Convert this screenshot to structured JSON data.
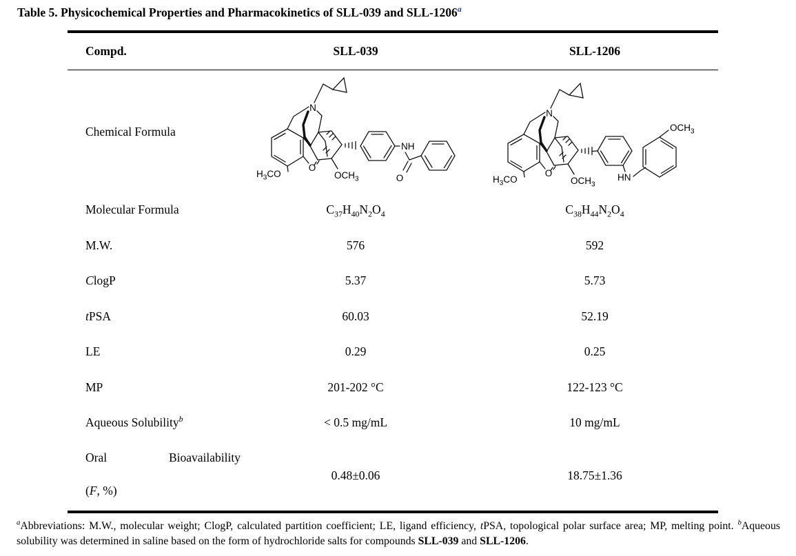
{
  "title": {
    "segments": [
      {
        "t": "Table 5. Physicochemical Properties and Pharmacokinetics of SLL-039 and SLL-1206",
        "b": true
      },
      {
        "t": "a",
        "sup": true,
        "i": true,
        "b": true,
        "c": "#2b3f96"
      }
    ]
  },
  "table": {
    "header": {
      "compound_label": "Compd.",
      "col1": "SLL-039",
      "col2": "SLL-1206"
    },
    "structure_row_label": "Chemical Formula",
    "structures": {
      "core_labels": {
        "methoxy_aryl": "H3CO",
        "ether_o": "O",
        "c6_methoxy": "OCH3",
        "nitrogen": "N"
      },
      "sll039_labels": {
        "amide_nh": "NH",
        "carbonyl_o": "O"
      },
      "sll1206_labels": {
        "amine_hn": "HN",
        "pmb_methoxy": "OCH3"
      }
    },
    "rows": [
      {
        "name": "molecular-formula",
        "label": [
          {
            "t": "Molecular Formula"
          }
        ],
        "v1": [
          {
            "t": "C"
          },
          {
            "t": "37",
            "sub": true
          },
          {
            "t": "H"
          },
          {
            "t": "40",
            "sub": true
          },
          {
            "t": "N"
          },
          {
            "t": "2",
            "sub": true
          },
          {
            "t": "O"
          },
          {
            "t": "4",
            "sub": true
          }
        ],
        "v2": [
          {
            "t": "C"
          },
          {
            "t": "38",
            "sub": true
          },
          {
            "t": "H"
          },
          {
            "t": "44",
            "sub": true
          },
          {
            "t": "N"
          },
          {
            "t": "2",
            "sub": true
          },
          {
            "t": "O"
          },
          {
            "t": "4",
            "sub": true
          }
        ]
      },
      {
        "name": "molecular-weight",
        "label": [
          {
            "t": "M.W."
          }
        ],
        "v1": [
          {
            "t": "576"
          }
        ],
        "v2": [
          {
            "t": "592"
          }
        ]
      },
      {
        "name": "clogp",
        "label": [
          {
            "t": "C",
            "i": true
          },
          {
            "t": "logP"
          }
        ],
        "v1": [
          {
            "t": "5.37"
          }
        ],
        "v2": [
          {
            "t": "5.73"
          }
        ]
      },
      {
        "name": "tpsa",
        "label": [
          {
            "t": "t",
            "i": true
          },
          {
            "t": "PSA"
          }
        ],
        "v1": [
          {
            "t": "60.03"
          }
        ],
        "v2": [
          {
            "t": "52.19"
          }
        ]
      },
      {
        "name": "ligand-efficiency",
        "label": [
          {
            "t": "LE"
          }
        ],
        "v1": [
          {
            "t": "0.29"
          }
        ],
        "v2": [
          {
            "t": "0.25"
          }
        ]
      },
      {
        "name": "melting-point",
        "label": [
          {
            "t": "MP"
          }
        ],
        "v1": [
          {
            "t": "201-202 °C"
          }
        ],
        "v2": [
          {
            "t": "122-123 °C"
          }
        ]
      },
      {
        "name": "aqueous-solubility",
        "label": [
          {
            "t": "Aqueous Solubility"
          },
          {
            "t": "b",
            "sup": true,
            "i": true
          }
        ],
        "v1": [
          {
            "t": "< 0.5 mg/mL"
          }
        ],
        "v2": [
          {
            "t": "10 mg/mL"
          }
        ]
      }
    ],
    "oral_row": {
      "word1": "Oral",
      "word2": "Bioavailability",
      "line2": [
        {
          "t": "("
        },
        {
          "t": "F",
          "i": true
        },
        {
          "t": ", %)"
        }
      ],
      "v1": [
        {
          "t": "0.48±0.06"
        }
      ],
      "v2": [
        {
          "t": "18.75±1.36"
        }
      ]
    }
  },
  "footnote": {
    "segments": [
      {
        "t": "a",
        "sup": true,
        "i": true
      },
      {
        "t": "Abbreviations: M.W., molecular weight; ClogP, calculated partition coefficient; LE, ligand efficiency, "
      },
      {
        "t": "t",
        "i": true
      },
      {
        "t": "PSA, topological polar surface area; MP, melting point. "
      },
      {
        "t": "b",
        "sup": true,
        "i": true
      },
      {
        "t": "Aqueous solubility was determined in saline based on the form of hydrochloride salts for compounds "
      },
      {
        "t": "SLL-039",
        "b": true
      },
      {
        "t": " and "
      },
      {
        "t": "SLL-1206",
        "b": true
      },
      {
        "t": "."
      }
    ]
  }
}
